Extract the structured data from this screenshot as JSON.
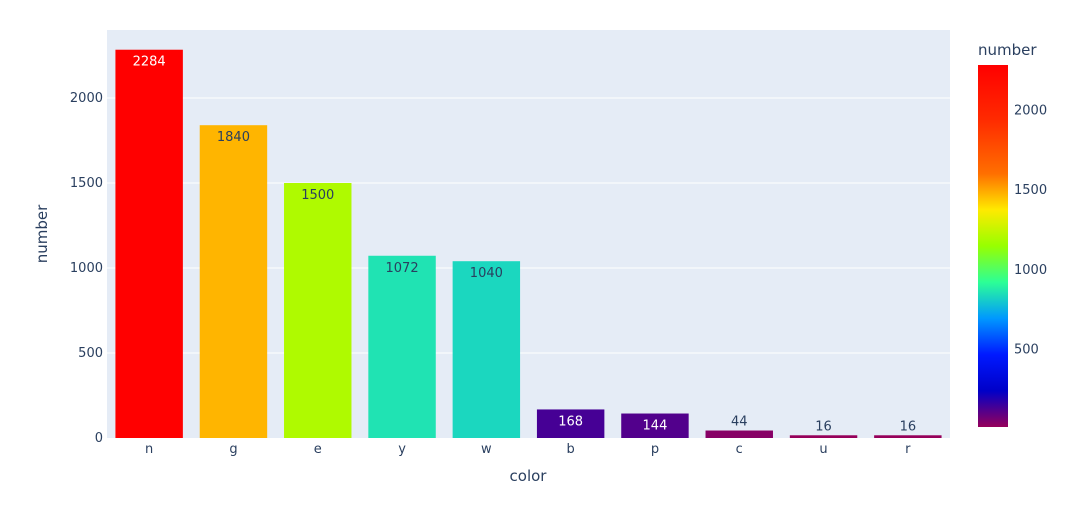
{
  "chart_data": {
    "type": "bar",
    "xlabel": "color",
    "ylabel": "number",
    "categories": [
      "n",
      "g",
      "e",
      "y",
      "w",
      "b",
      "p",
      "c",
      "u",
      "r"
    ],
    "values": [
      2284,
      1840,
      1500,
      1072,
      1040,
      168,
      144,
      44,
      16,
      16
    ],
    "ylim": [
      0,
      2400
    ],
    "yticks": [
      0,
      500,
      1000,
      1500,
      2000
    ],
    "grid": true,
    "data_labels": [
      "2284",
      "1840",
      "1500",
      "1072",
      "1040",
      "168",
      "144",
      "44",
      "16",
      "16"
    ],
    "colorbar": {
      "title": "number",
      "colorscale": "rainbow",
      "range": [
        16,
        2284
      ],
      "ticks": [
        500,
        1000,
        1500,
        2000
      ]
    },
    "colors": {
      "plot_background": "#e5ecf6",
      "gridline": "#ffffff",
      "text": "#2a3f5f"
    }
  }
}
